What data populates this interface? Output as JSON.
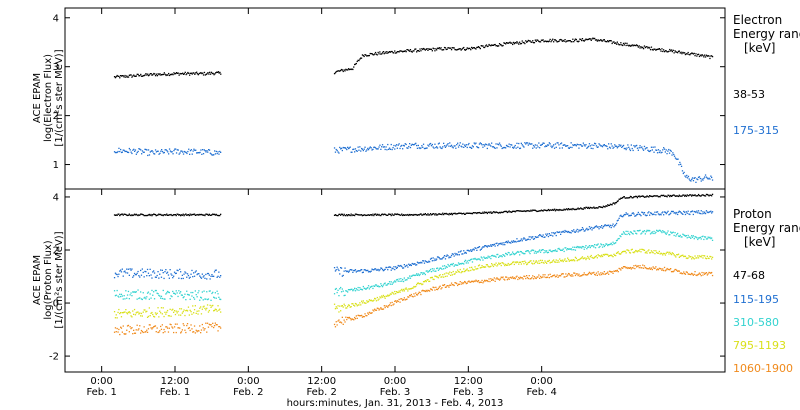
{
  "chart_data": [
    {
      "type": "scatter",
      "panel": "electron",
      "ylabel_lines": [
        "ACE EPAM",
        "log(Electron Flux)",
        "[1/(cm²s ster MeV)]"
      ],
      "ylim": [
        0.5,
        4.2
      ],
      "yticks": [
        1,
        2,
        3,
        4
      ],
      "legend_title": [
        "Electron",
        "Energy ranges",
        "[keV]"
      ],
      "series": [
        {
          "name": "38-53",
          "color": "#000000",
          "points": [
            [
              2,
              2.8
            ],
            [
              8,
              2.85
            ],
            [
              12,
              2.87
            ],
            [
              17,
              2.87
            ],
            [
              18,
              2.88
            ],
            [
              19,
              2.88
            ],
            [
              19.5,
              2.87
            ],
            [
              38,
              2.9
            ],
            [
              41,
              2.98
            ],
            [
              42,
              3.15
            ],
            [
              42.7,
              3.25
            ],
            [
              48,
              3.32
            ],
            [
              56,
              3.38
            ],
            [
              60,
              3.38
            ],
            [
              64,
              3.45
            ],
            [
              72,
              3.55
            ],
            [
              74,
              3.55
            ],
            [
              78,
              3.55
            ],
            [
              80,
              3.58
            ],
            [
              84,
              3.5
            ],
            [
              88,
              3.42
            ],
            [
              92,
              3.35
            ],
            [
              96,
              3.28
            ],
            [
              100,
              3.2
            ]
          ],
          "gaps_after": [
            19.5
          ]
        },
        {
          "name": "175-315",
          "color": "#1f6fd1",
          "points": [
            [
              2,
              1.3
            ],
            [
              6,
              1.28
            ],
            [
              8,
              1.25
            ],
            [
              12,
              1.28
            ],
            [
              16,
              1.27
            ],
            [
              19.5,
              1.25
            ],
            [
              38,
              1.3
            ],
            [
              44,
              1.35
            ],
            [
              50,
              1.4
            ],
            [
              56,
              1.4
            ],
            [
              62,
              1.4
            ],
            [
              68,
              1.4
            ],
            [
              72,
              1.4
            ],
            [
              76,
              1.4
            ],
            [
              80,
              1.4
            ],
            [
              84,
              1.38
            ],
            [
              88,
              1.35
            ],
            [
              92,
              1.3
            ],
            [
              93.5,
              1.25
            ],
            [
              94.5,
              1.0
            ],
            [
              95.5,
              0.75
            ],
            [
              97,
              0.7
            ],
            [
              99,
              0.75
            ],
            [
              100,
              0.7
            ]
          ],
          "gaps_after": [
            19.5
          ]
        }
      ]
    },
    {
      "type": "scatter",
      "panel": "proton",
      "ylabel_lines": [
        "ACE EPAM",
        "log(Proton Flux)",
        "[1/(cm²s ster MeV)]"
      ],
      "ylim": [
        -2.6,
        4.3
      ],
      "yticks": [
        -2,
        0,
        2,
        4
      ],
      "legend_title": [
        "Proton",
        "Energy ranges",
        "[keV]"
      ],
      "series": [
        {
          "name": "47-68",
          "color": "#000000",
          "points": [
            [
              2,
              3.35
            ],
            [
              19.5,
              3.35
            ],
            [
              38,
              3.35
            ],
            [
              50,
              3.35
            ],
            [
              60,
              3.4
            ],
            [
              70,
              3.5
            ],
            [
              76,
              3.55
            ],
            [
              82,
              3.65
            ],
            [
              84,
              3.8
            ],
            [
              85,
              4.0
            ],
            [
              90,
              4.05
            ],
            [
              100,
              4.1
            ]
          ],
          "gaps_after": [
            19.5
          ]
        },
        {
          "name": "115-195",
          "color": "#1f6fd1",
          "points": [
            [
              2,
              1.15
            ],
            [
              19.5,
              1.1
            ],
            [
              38,
              1.2
            ],
            [
              44,
              1.25
            ],
            [
              48,
              1.35
            ],
            [
              52,
              1.55
            ],
            [
              56,
              1.75
            ],
            [
              60,
              2.0
            ],
            [
              64,
              2.2
            ],
            [
              68,
              2.4
            ],
            [
              72,
              2.55
            ],
            [
              76,
              2.7
            ],
            [
              80,
              2.85
            ],
            [
              84,
              2.95
            ],
            [
              85,
              3.35
            ],
            [
              90,
              3.4
            ],
            [
              100,
              3.45
            ]
          ],
          "gaps_after": [
            19.5
          ]
        },
        {
          "name": "310-580",
          "color": "#33d3d0",
          "points": [
            [
              2,
              0.35
            ],
            [
              19.5,
              0.3
            ],
            [
              38,
              0.4
            ],
            [
              42,
              0.55
            ],
            [
              46,
              0.7
            ],
            [
              50,
              0.95
            ],
            [
              54,
              1.25
            ],
            [
              58,
              1.5
            ],
            [
              62,
              1.7
            ],
            [
              66,
              1.85
            ],
            [
              70,
              1.95
            ],
            [
              74,
              2.0
            ],
            [
              78,
              2.1
            ],
            [
              82,
              2.2
            ],
            [
              84,
              2.3
            ],
            [
              85,
              2.65
            ],
            [
              88,
              2.7
            ],
            [
              92,
              2.7
            ],
            [
              96,
              2.5
            ],
            [
              100,
              2.45
            ]
          ],
          "gaps_after": [
            19.5
          ]
        },
        {
          "name": "795-1193",
          "color": "#d9e01a",
          "points": [
            [
              2,
              -0.4
            ],
            [
              19.5,
              -0.2
            ],
            [
              38,
              -0.2
            ],
            [
              42,
              0.0
            ],
            [
              46,
              0.25
            ],
            [
              50,
              0.55
            ],
            [
              54,
              0.95
            ],
            [
              58,
              1.2
            ],
            [
              62,
              1.4
            ],
            [
              66,
              1.5
            ],
            [
              70,
              1.55
            ],
            [
              74,
              1.6
            ],
            [
              78,
              1.7
            ],
            [
              82,
              1.8
            ],
            [
              84,
              1.85
            ],
            [
              85,
              1.95
            ],
            [
              88,
              2.0
            ],
            [
              92,
              1.9
            ],
            [
              96,
              1.75
            ],
            [
              100,
              1.75
            ]
          ],
          "gaps_after": [
            19.5
          ]
        },
        {
          "name": "1060-1900",
          "color": "#f08a1c",
          "points": [
            [
              2,
              -1.0
            ],
            [
              19.5,
              -0.9
            ],
            [
              38,
              -0.7
            ],
            [
              42,
              -0.5
            ],
            [
              46,
              -0.15
            ],
            [
              50,
              0.25
            ],
            [
              54,
              0.55
            ],
            [
              58,
              0.75
            ],
            [
              62,
              0.85
            ],
            [
              66,
              0.95
            ],
            [
              70,
              1.0
            ],
            [
              74,
              1.05
            ],
            [
              78,
              1.1
            ],
            [
              82,
              1.15
            ],
            [
              84,
              1.2
            ],
            [
              85,
              1.35
            ],
            [
              88,
              1.4
            ],
            [
              92,
              1.3
            ],
            [
              96,
              1.15
            ],
            [
              100,
              1.1
            ]
          ],
          "gaps_after": [
            19.5
          ]
        }
      ]
    }
  ],
  "x_axis": {
    "xlim": [
      -6,
      102
    ],
    "ticks": [
      {
        "hour": 0,
        "time": "0:00",
        "date": "Feb. 1"
      },
      {
        "hour": 12,
        "time": "12:00",
        "date": "Feb. 1"
      },
      {
        "hour": 24,
        "time": "0:00",
        "date": "Feb. 2"
      },
      {
        "hour": 36,
        "time": "12:00",
        "date": "Feb. 2"
      },
      {
        "hour": 48,
        "time": "0:00",
        "date": "Feb. 3"
      },
      {
        "hour": 60,
        "time": "12:00",
        "date": "Feb. 3"
      },
      {
        "hour": 72,
        "time": "0:00",
        "date": "Feb. 4"
      }
    ],
    "label": "hours:minutes, Jan. 31, 2013 - Feb. 4, 2013"
  },
  "annotations": {
    "electron_outlier": "",
    "note": ""
  }
}
